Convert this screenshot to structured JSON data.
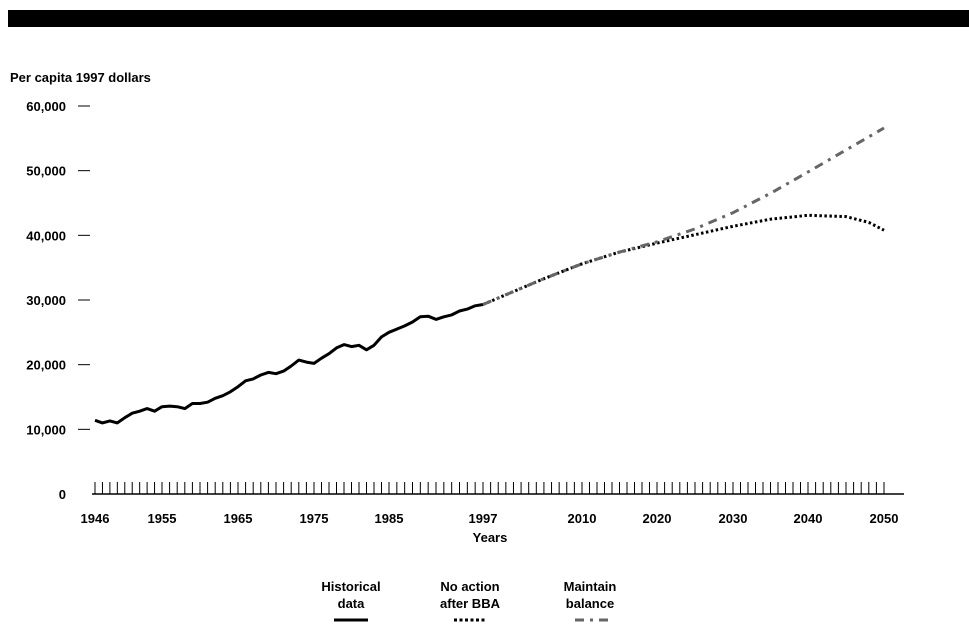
{
  "chart_data": {
    "type": "line",
    "title": "",
    "ylabel": "Per capita 1997 dollars",
    "xlabel": "Years",
    "ylim": [
      0,
      60000
    ],
    "xlim": [
      1946,
      2050
    ],
    "y_ticks": [
      "0",
      "10,000",
      "20,000",
      "30,000",
      "40,000",
      "50,000",
      "60,000"
    ],
    "y_tick_values": [
      0,
      10000,
      20000,
      30000,
      40000,
      50000,
      60000
    ],
    "x_ticks": [
      "1946",
      "1955",
      "1965",
      "1975",
      "1985",
      "1997",
      "2010",
      "2020",
      "2030",
      "2040",
      "2050"
    ],
    "x_tick_values": [
      1946,
      1955,
      1965,
      1975,
      1985,
      1997,
      2010,
      2020,
      2030,
      2040,
      2050
    ],
    "grid": false,
    "legend_position": "bottom",
    "series": [
      {
        "name": "Historical data",
        "style": "solid",
        "color": "#000000",
        "x": [
          1946,
          1947,
          1948,
          1949,
          1950,
          1951,
          1952,
          1953,
          1954,
          1955,
          1956,
          1957,
          1958,
          1959,
          1960,
          1961,
          1962,
          1963,
          1964,
          1965,
          1966,
          1967,
          1968,
          1969,
          1970,
          1971,
          1972,
          1973,
          1974,
          1975,
          1976,
          1977,
          1978,
          1979,
          1980,
          1981,
          1982,
          1983,
          1984,
          1985,
          1986,
          1987,
          1988,
          1989,
          1990,
          1991,
          1992,
          1993,
          1994,
          1995,
          1996,
          1997
        ],
        "y": [
          11400,
          11000,
          11300,
          11000,
          11800,
          12500,
          12800,
          13200,
          12800,
          13500,
          13600,
          13500,
          13200,
          14000,
          14000,
          14200,
          14800,
          15200,
          15800,
          16600,
          17500,
          17800,
          18400,
          18800,
          18600,
          19000,
          19800,
          20700,
          20400,
          20200,
          21000,
          21700,
          22600,
          23100,
          22800,
          23000,
          22300,
          23000,
          24300,
          25000,
          25500,
          26000,
          26600,
          27400,
          27500,
          27000,
          27400,
          27700,
          28300,
          28600,
          29100,
          29300
        ]
      },
      {
        "name": "No action after BBA",
        "style": "dotted",
        "color": "#000000",
        "x": [
          1997,
          2000,
          2005,
          2010,
          2015,
          2020,
          2025,
          2030,
          2035,
          2040,
          2045,
          2048,
          2050
        ],
        "y": [
          29300,
          30800,
          33300,
          35600,
          37400,
          38800,
          40100,
          41400,
          42500,
          43100,
          42900,
          42000,
          40800
        ]
      },
      {
        "name": "Maintain balance",
        "style": "dash-dot",
        "color": "#666666",
        "x": [
          1997,
          2000,
          2005,
          2010,
          2015,
          2020,
          2025,
          2030,
          2035,
          2040,
          2045,
          2050
        ],
        "y": [
          29300,
          30800,
          33300,
          35600,
          37400,
          39000,
          41000,
          43500,
          46500,
          49800,
          53200,
          56600
        ]
      }
    ]
  }
}
